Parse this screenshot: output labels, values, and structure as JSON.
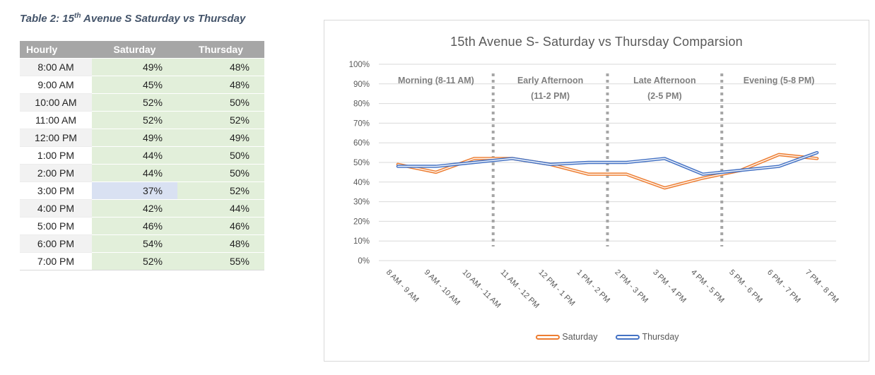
{
  "table": {
    "caption": {
      "prefix": "Table 2: 15",
      "sup": "th",
      "suffix": " Avenue S Saturday vs Thursday"
    },
    "columns": [
      "Hourly",
      "Saturday",
      "Thursday"
    ],
    "rows": [
      {
        "hour": "8:00 AM",
        "saturday": "49%",
        "thursday": "48%"
      },
      {
        "hour": "9:00 AM",
        "saturday": "45%",
        "thursday": "48%"
      },
      {
        "hour": "10:00 AM",
        "saturday": "52%",
        "thursday": "50%"
      },
      {
        "hour": "11:00 AM",
        "saturday": "52%",
        "thursday": "52%"
      },
      {
        "hour": "12:00 PM",
        "saturday": "49%",
        "thursday": "49%"
      },
      {
        "hour": "1:00 PM",
        "saturday": "44%",
        "thursday": "50%"
      },
      {
        "hour": "2:00 PM",
        "saturday": "44%",
        "thursday": "50%"
      },
      {
        "hour": "3:00 PM",
        "saturday": "37%",
        "thursday": "52%"
      },
      {
        "hour": "4:00 PM",
        "saturday": "42%",
        "thursday": "44%"
      },
      {
        "hour": "5:00 PM",
        "saturday": "46%",
        "thursday": "46%"
      },
      {
        "hour": "6:00 PM",
        "saturday": "54%",
        "thursday": "48%"
      },
      {
        "hour": "7:00 PM",
        "saturday": "52%",
        "thursday": "55%"
      }
    ],
    "highlight": {
      "row_index": 7,
      "column": "saturday",
      "color": "#D9E1F2"
    }
  },
  "chart_data": {
    "type": "line",
    "title": "15th Avenue S- Saturday vs Thursday Comparsion",
    "categories": [
      "8 AM - 9 AM",
      "9 AM - 10 AM",
      "10 AM - 11 AM",
      "11 AM - 12 PM",
      "12 PM - 1 PM",
      "1 PM - 2 PM",
      "2 PM - 3 PM",
      "3 PM - 4 PM",
      "4 PM - 5 PM",
      "5 PM - 6 PM",
      "6 PM - 7 PM",
      "7 PM - 8 PM"
    ],
    "series": [
      {
        "name": "Saturday",
        "color": "#ED7D31",
        "values": [
          49,
          45,
          52,
          52,
          49,
          44,
          44,
          37,
          42,
          46,
          54,
          52
        ]
      },
      {
        "name": "Thursday",
        "color": "#4472C4",
        "values": [
          48,
          48,
          50,
          52,
          49,
          50,
          50,
          52,
          44,
          46,
          48,
          55
        ]
      }
    ],
    "ylim": [
      0,
      100
    ],
    "y_tick_step": 10,
    "y_tick_format": "percent",
    "grid": true,
    "legend_position": "bottom",
    "separators_at_index": [
      3,
      6,
      9
    ],
    "regions": [
      {
        "label": "Morning (8-11 AM)",
        "sublabel": "",
        "center_index": 1.5
      },
      {
        "label": "Early Afternoon",
        "sublabel": "(11-2 PM)",
        "center_index": 4.5
      },
      {
        "label": "Late Afternoon",
        "sublabel": "(2-5 PM)",
        "center_index": 7.5
      },
      {
        "label": "Evening (5-8 PM)",
        "sublabel": "",
        "center_index": 10.5
      }
    ]
  },
  "colors": {
    "caption_text": "#44546A",
    "header_bg": "#A6A6A6",
    "data_cell_bg": "#E2EFDA",
    "row_alt_bg": "#F2F2F2",
    "gridline": "#D9D9D9",
    "separator": "#A6A6A6",
    "chart_text": "#595959",
    "annotation_text": "#7F7F7F"
  }
}
